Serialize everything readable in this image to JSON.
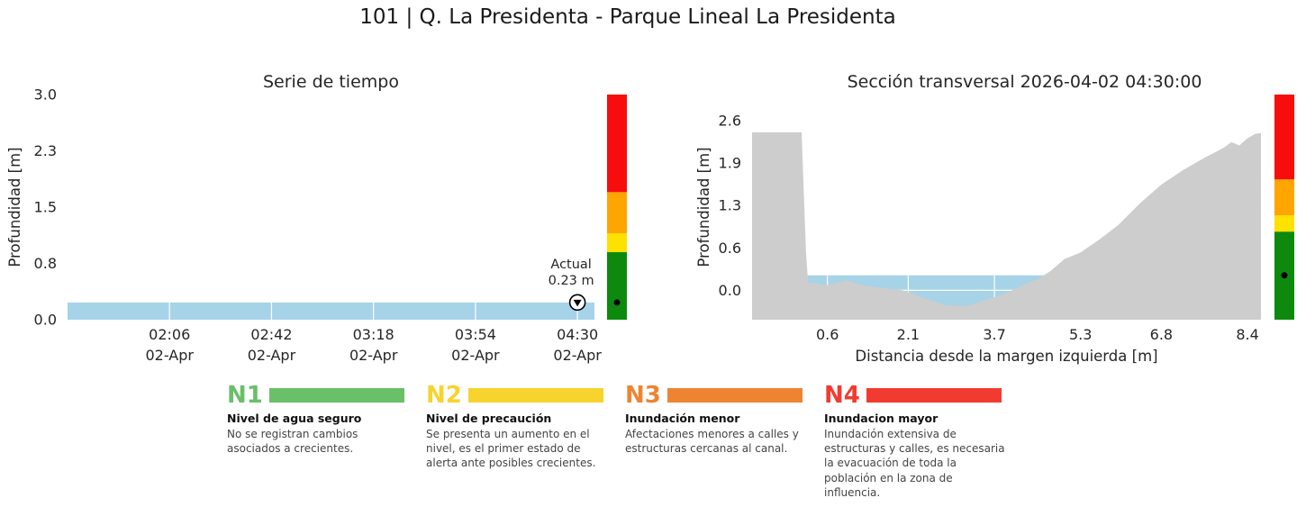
{
  "page_title": "101 | Q. La Presidenta -  Parque Lineal La Presidenta",
  "chart_data": [
    {
      "id": "time_series",
      "type": "area",
      "title": "Serie de tiempo",
      "ylabel": "Profundidad [m]",
      "ylim": [
        0.0,
        3.0
      ],
      "yticks": [
        {
          "value": 0.0,
          "label": "0.0"
        },
        {
          "value": 0.75,
          "label": "0.8"
        },
        {
          "value": 1.5,
          "label": "1.5"
        },
        {
          "value": 2.25,
          "label": "2.3"
        },
        {
          "value": 3.0,
          "label": "3.0"
        }
      ],
      "xlim_minutes": [
        90,
        276
      ],
      "xticks": [
        {
          "minutes": 126,
          "time": "02:06",
          "date": "02-Apr"
        },
        {
          "minutes": 162,
          "time": "02:42",
          "date": "02-Apr"
        },
        {
          "minutes": 198,
          "time": "03:18",
          "date": "02-Apr"
        },
        {
          "minutes": 234,
          "time": "03:54",
          "date": "02-Apr"
        },
        {
          "minutes": 270,
          "time": "04:30",
          "date": "02-Apr"
        }
      ],
      "series": [
        {
          "name": "Profundidad",
          "color": "#a6d3e8",
          "points": [
            [
              90,
              0.23
            ],
            [
              276,
              0.23
            ]
          ]
        }
      ],
      "current": {
        "minutes": 270,
        "value": 0.23,
        "label_line1": "Actual",
        "label_line2": "0.23 m"
      },
      "alert_bands": [
        {
          "name": "N1",
          "color": "#0d8a0d",
          "from": 0.0,
          "to": 0.9
        },
        {
          "name": "N2",
          "color": "#ffe100",
          "from": 0.9,
          "to": 1.15
        },
        {
          "name": "N3",
          "color": "#ffa500",
          "from": 1.15,
          "to": 1.7
        },
        {
          "name": "N4",
          "color": "#f70d0d",
          "from": 1.7,
          "to": 3.0
        }
      ]
    },
    {
      "id": "cross_section",
      "type": "area",
      "title": "Sección transversal 2026-04-02 04:30:00",
      "ylabel": "Profundidad [m]",
      "xlabel": "Distancia desde la margen izquierda [m]",
      "ylim": [
        -0.45,
        3.0
      ],
      "yticks": [
        {
          "value": 0.0,
          "label": "0.0"
        },
        {
          "value": 0.65,
          "label": "0.6"
        },
        {
          "value": 1.3,
          "label": "1.3"
        },
        {
          "value": 1.95,
          "label": "1.9"
        },
        {
          "value": 2.6,
          "label": "2.6"
        }
      ],
      "xlim": [
        -0.8,
        8.65
      ],
      "xticks": [
        {
          "value": 0.6,
          "label": "0.6"
        },
        {
          "value": 2.1,
          "label": "2.1"
        },
        {
          "value": 3.7,
          "label": "3.7"
        },
        {
          "value": 5.3,
          "label": "5.3"
        },
        {
          "value": 6.8,
          "label": "6.8"
        },
        {
          "value": 8.4,
          "label": "8.4"
        }
      ],
      "terrain": {
        "color": "#cdcdcd",
        "points": [
          [
            -0.8,
            2.42
          ],
          [
            0.12,
            2.42
          ],
          [
            0.2,
            0.6
          ],
          [
            0.24,
            0.12
          ],
          [
            0.6,
            0.08
          ],
          [
            0.95,
            0.15
          ],
          [
            1.3,
            0.07
          ],
          [
            1.7,
            0.03
          ],
          [
            2.0,
            0.0
          ],
          [
            2.4,
            -0.12
          ],
          [
            2.8,
            -0.23
          ],
          [
            3.2,
            -0.24
          ],
          [
            3.6,
            -0.13
          ],
          [
            3.9,
            -0.05
          ],
          [
            4.2,
            0.07
          ],
          [
            4.5,
            0.17
          ],
          [
            4.75,
            0.3
          ],
          [
            5.0,
            0.48
          ],
          [
            5.3,
            0.58
          ],
          [
            5.65,
            0.78
          ],
          [
            6.0,
            1.0
          ],
          [
            6.4,
            1.33
          ],
          [
            6.8,
            1.62
          ],
          [
            7.2,
            1.84
          ],
          [
            7.6,
            2.03
          ],
          [
            7.95,
            2.18
          ],
          [
            8.1,
            2.27
          ],
          [
            8.25,
            2.22
          ],
          [
            8.4,
            2.33
          ],
          [
            8.55,
            2.4
          ],
          [
            8.65,
            2.41
          ]
        ]
      },
      "water": {
        "color": "#a6d3e8",
        "level": 0.23,
        "x_from": 0.23,
        "x_to": 4.62
      },
      "current_level": 0.23,
      "alert_bands": [
        {
          "name": "N1",
          "color": "#0d8a0d",
          "from": -0.45,
          "to": 0.9
        },
        {
          "name": "N2",
          "color": "#ffe100",
          "from": 0.9,
          "to": 1.15
        },
        {
          "name": "N3",
          "color": "#ffa500",
          "from": 1.15,
          "to": 1.7
        },
        {
          "name": "N4",
          "color": "#f70d0d",
          "from": 1.7,
          "to": 3.0
        }
      ]
    }
  ],
  "legend": {
    "items": [
      {
        "code": "N1",
        "color": "#6abf69",
        "title": "Nivel de agua seguro",
        "description": "No se registran cambios asociados a crecientes."
      },
      {
        "code": "N2",
        "color": "#f7d32e",
        "title": "Nivel de precaución",
        "description": "Se presenta un aumento en el nivel, es el primer estado de alerta ante posibles crecientes."
      },
      {
        "code": "N3",
        "color": "#ee8432",
        "title": "Inundación menor",
        "description": "Afectaciones menores a calles y estructuras cercanas al canal."
      },
      {
        "code": "N4",
        "color": "#f23b30",
        "title": "Inundacion mayor",
        "description": "Inundación extensiva de estructuras y calles, es necesaria la evacuación de toda la población en la zona de influencia."
      }
    ]
  }
}
